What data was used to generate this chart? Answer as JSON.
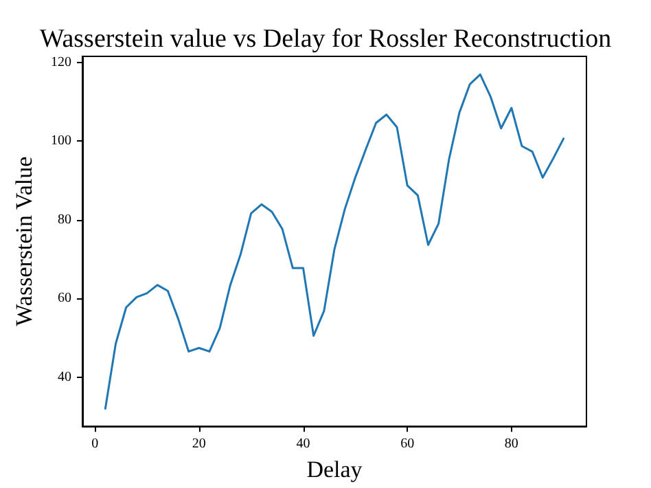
{
  "chart_data": {
    "type": "line",
    "title": "Wasserstein value vs Delay for Rossler Reconstruction",
    "xlabel": "Delay",
    "ylabel": "Wasserstein Value",
    "x": [
      2,
      4,
      6,
      8,
      10,
      12,
      14,
      16,
      18,
      20,
      22,
      24,
      26,
      28,
      30,
      32,
      34,
      36,
      38,
      40,
      42,
      44,
      46,
      48,
      50,
      52,
      54,
      56,
      58,
      60,
      62,
      64,
      66,
      68,
      70,
      72,
      74,
      76,
      78,
      80,
      82,
      84,
      86,
      88,
      90
    ],
    "series": [
      {
        "color": "#1f77b4",
        "values": [
          32.0,
          48.5,
          57.7,
          60.3,
          61.3,
          63.4,
          61.9,
          54.8,
          46.5,
          47.4,
          46.5,
          52.5,
          63.4,
          71.3,
          81.6,
          83.9,
          82.0,
          77.6,
          67.7,
          67.7,
          50.5,
          56.8,
          72.5,
          82.7,
          90.7,
          97.8,
          104.6,
          106.7,
          103.5,
          88.7,
          86.2,
          73.6,
          79.0,
          95.3,
          107.2,
          114.4,
          116.9,
          111.2,
          103.2,
          108.4,
          98.7,
          97.3,
          90.7,
          95.5,
          100.6
        ]
      }
    ],
    "xlim": [
      -2.4,
      94.4
    ],
    "xticks": [
      0,
      20,
      40,
      60,
      80
    ],
    "ylim": [
      27.5,
      121.5
    ],
    "yticks": [
      40,
      60,
      80,
      100,
      120
    ],
    "grid": false,
    "marker": "none",
    "line_style": "solid"
  }
}
